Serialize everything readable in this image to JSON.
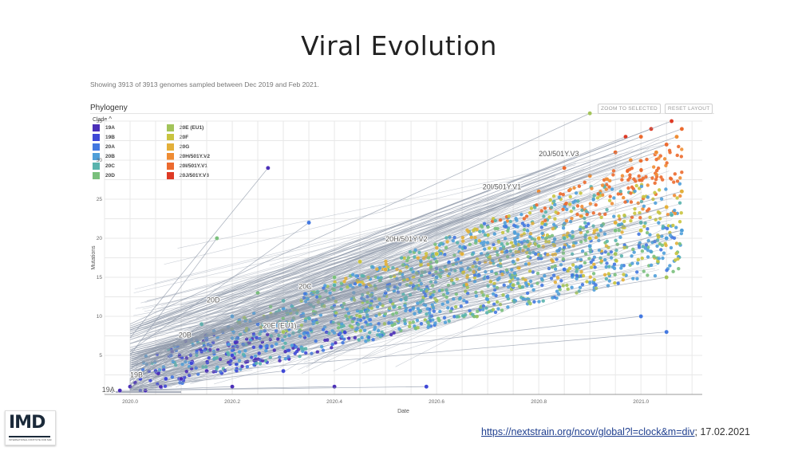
{
  "slide": {
    "title": "Viral Evolution"
  },
  "panel": {
    "summary": "Showing 3913 of 3913 genomes sampled between Dec 2019 and Feb 2021.",
    "title": "Phylogeny",
    "zoom_button": "ZOOM TO SELECTED",
    "reset_button": "RESET LAYOUT",
    "legend_title": "Clade",
    "legend_chevron": "^"
  },
  "legend": [
    {
      "label": "19A",
      "color": "#4b2fb8"
    },
    {
      "label": "19B",
      "color": "#3f48d6"
    },
    {
      "label": "20A",
      "color": "#4378e0"
    },
    {
      "label": "20B",
      "color": "#4f9fd9"
    },
    {
      "label": "20C",
      "color": "#59b3ad"
    },
    {
      "label": "20D",
      "color": "#7ac07c"
    },
    {
      "label": "20E (EU1)",
      "color": "#a3c45a"
    },
    {
      "label": "20F",
      "color": "#c9c43f"
    },
    {
      "label": "20G",
      "color": "#e3b03a"
    },
    {
      "label": "20H/501Y.V2",
      "color": "#ef8c33"
    },
    {
      "label": "20I/501Y.V1",
      "color": "#ec6a2e"
    },
    {
      "label": "20J/501Y.V3",
      "color": "#de3a25"
    }
  ],
  "chart_data": {
    "type": "scatter",
    "xlabel": "Date",
    "ylabel": "Mutations",
    "x_ticks": [
      "2020.0",
      "2020.2",
      "2020.4",
      "2020.6",
      "2020.8",
      "2021.0"
    ],
    "y_ticks": [
      "5",
      "10",
      "15",
      "20",
      "25",
      "30",
      "35"
    ],
    "xlim": [
      2019.95,
      2021.12
    ],
    "ylim": [
      0,
      35
    ],
    "grid": true,
    "clade_labels": [
      {
        "label": "19A",
        "x": 2019.945,
        "y": 0.3
      },
      {
        "label": "19B",
        "x": 2020.0,
        "y": 2.2
      },
      {
        "label": "20B",
        "x": 2020.095,
        "y": 7.3
      },
      {
        "label": "20D",
        "x": 2020.15,
        "y": 11.8
      },
      {
        "label": "20C",
        "x": 2020.33,
        "y": 13.5
      },
      {
        "label": "20E (EU1)",
        "x": 2020.26,
        "y": 8.5
      },
      {
        "label": "20H/501Y.V2",
        "x": 2020.5,
        "y": 19.6
      },
      {
        "label": "20I/501Y.V1",
        "x": 2020.69,
        "y": 26.3
      },
      {
        "label": "20J/501Y.V3",
        "x": 2020.8,
        "y": 30.5
      }
    ],
    "series": [
      {
        "name": "19A",
        "color": "#4b2fb8",
        "points": [
          [
            2019.98,
            0.5
          ],
          [
            2020.0,
            1
          ],
          [
            2020.01,
            1.5
          ],
          [
            2020.03,
            0.5
          ],
          [
            2020.06,
            1
          ],
          [
            2020.1,
            2
          ],
          [
            2020.15,
            3
          ],
          [
            2020.2,
            1
          ],
          [
            2020.27,
            29
          ],
          [
            2020.4,
            1
          ]
        ]
      },
      {
        "name": "19B",
        "color": "#3f48d6",
        "points": [
          [
            2020.02,
            2
          ],
          [
            2020.05,
            3
          ],
          [
            2020.07,
            2
          ],
          [
            2020.12,
            4
          ],
          [
            2020.2,
            5
          ],
          [
            2020.3,
            3
          ],
          [
            2020.58,
            1
          ]
        ]
      },
      {
        "name": "20A",
        "color": "#4378e0",
        "points": [
          [
            2020.08,
            5
          ],
          [
            2020.15,
            7
          ],
          [
            2020.25,
            9
          ],
          [
            2020.35,
            22
          ],
          [
            2020.5,
            13
          ],
          [
            2020.7,
            15
          ],
          [
            2020.85,
            16
          ],
          [
            2021.05,
            8
          ],
          [
            2021.0,
            10
          ]
        ]
      },
      {
        "name": "20B",
        "color": "#4f9fd9",
        "points": [
          [
            2020.12,
            7
          ],
          [
            2020.2,
            10
          ],
          [
            2020.3,
            11
          ],
          [
            2020.45,
            14
          ],
          [
            2020.6,
            15
          ],
          [
            2020.75,
            17
          ],
          [
            2020.9,
            19
          ],
          [
            2021.05,
            20
          ],
          [
            2021.08,
            21
          ]
        ]
      },
      {
        "name": "20C",
        "color": "#59b3ad",
        "points": [
          [
            2020.14,
            9
          ],
          [
            2020.3,
            12
          ],
          [
            2020.4,
            14
          ],
          [
            2020.55,
            16
          ],
          [
            2020.7,
            18
          ],
          [
            2020.85,
            20
          ],
          [
            2021.0,
            22
          ],
          [
            2021.06,
            23
          ]
        ]
      },
      {
        "name": "20D",
        "color": "#7ac07c",
        "points": [
          [
            2020.17,
            20
          ],
          [
            2020.25,
            13
          ],
          [
            2020.4,
            15
          ],
          [
            2020.6,
            17
          ],
          [
            2020.8,
            19
          ],
          [
            2020.95,
            21
          ]
        ]
      },
      {
        "name": "20E (EU1)",
        "color": "#a3c45a",
        "points": [
          [
            2020.3,
            8
          ],
          [
            2020.45,
            10
          ],
          [
            2020.6,
            12
          ],
          [
            2020.75,
            14
          ],
          [
            2020.9,
            36
          ],
          [
            2020.95,
            18
          ],
          [
            2021.05,
            15
          ]
        ]
      },
      {
        "name": "20F",
        "color": "#c9c43f",
        "points": [
          [
            2020.45,
            17
          ],
          [
            2020.6,
            18
          ],
          [
            2020.75,
            19
          ],
          [
            2020.9,
            20
          ],
          [
            2021.0,
            21
          ]
        ]
      },
      {
        "name": "20G",
        "color": "#e3b03a",
        "points": [
          [
            2020.5,
            16
          ],
          [
            2020.65,
            18
          ],
          [
            2020.8,
            20
          ],
          [
            2020.95,
            22
          ],
          [
            2021.05,
            24
          ],
          [
            2021.08,
            26
          ]
        ]
      },
      {
        "name": "20H/501Y.V2",
        "color": "#ef8c33",
        "points": [
          [
            2020.8,
            26
          ],
          [
            2020.9,
            28
          ],
          [
            2020.98,
            30
          ],
          [
            2021.03,
            31
          ],
          [
            2021.07,
            33
          ]
        ]
      },
      {
        "name": "20I/501Y.V1",
        "color": "#ec6a2e",
        "points": [
          [
            2020.85,
            29
          ],
          [
            2020.95,
            31
          ],
          [
            2021.0,
            33
          ],
          [
            2021.05,
            32
          ],
          [
            2021.08,
            34
          ]
        ]
      },
      {
        "name": "20J/501Y.V3",
        "color": "#de3a25",
        "points": [
          [
            2020.97,
            33
          ],
          [
            2021.02,
            34
          ],
          [
            2021.06,
            35
          ]
        ]
      }
    ]
  },
  "source": {
    "link_text": "https://nextstrain.org/ncov/global?l=clock&m=div",
    "date_text": "; 17.02.2021"
  },
  "logo": {
    "text": "IMD",
    "subtext": "INTERNATIONAL INSTITUTE FOR MANAGEMENT DEVELOPMENT"
  }
}
